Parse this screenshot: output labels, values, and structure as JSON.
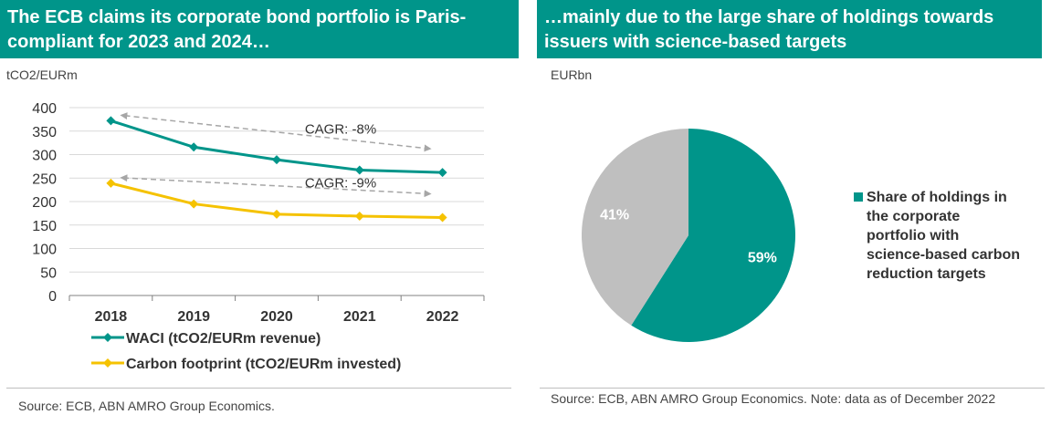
{
  "left": {
    "title": "The ECB claims its corporate bond portfolio is Paris-compliant for 2023 and 2024…",
    "unit": "tCO2/EURm",
    "source": "Source: ECB, ABN AMRO Group Economics."
  },
  "right": {
    "title": "…mainly due to the large share of holdings towards issuers with science-based targets",
    "unit": "EURbn",
    "source": "Source: ECB, ABN AMRO Group Economics. Note: data as of December 2022"
  },
  "chart_data": [
    {
      "type": "line",
      "x": [
        "2018",
        "2019",
        "2020",
        "2021",
        "2022"
      ],
      "ylim": [
        0,
        400
      ],
      "yticks": [
        0,
        50,
        100,
        150,
        200,
        250,
        300,
        350,
        400
      ],
      "grid": true,
      "legend_position": "bottom",
      "series": [
        {
          "name": "WACI (tCO2/EURm revenue)",
          "values": [
            372,
            316,
            289,
            267,
            262
          ],
          "color": "#00958a"
        },
        {
          "name": "Carbon footprint (tCO2/EURm invested)",
          "values": [
            239,
            195,
            173,
            169,
            166
          ],
          "color": "#f5c200"
        }
      ],
      "annotations": [
        {
          "text": "CAGR: -8%"
        },
        {
          "text": "CAGR: -9%"
        }
      ]
    },
    {
      "type": "pie",
      "slices": [
        {
          "label": "59%",
          "value": 59,
          "color": "#00958a"
        },
        {
          "label": "41%",
          "value": 41,
          "color": "#bfbfbf"
        }
      ],
      "legend": [
        "Share of holdings in the corporate portfolio with science-based carbon reduction targets"
      ],
      "legend_position": "right"
    }
  ]
}
